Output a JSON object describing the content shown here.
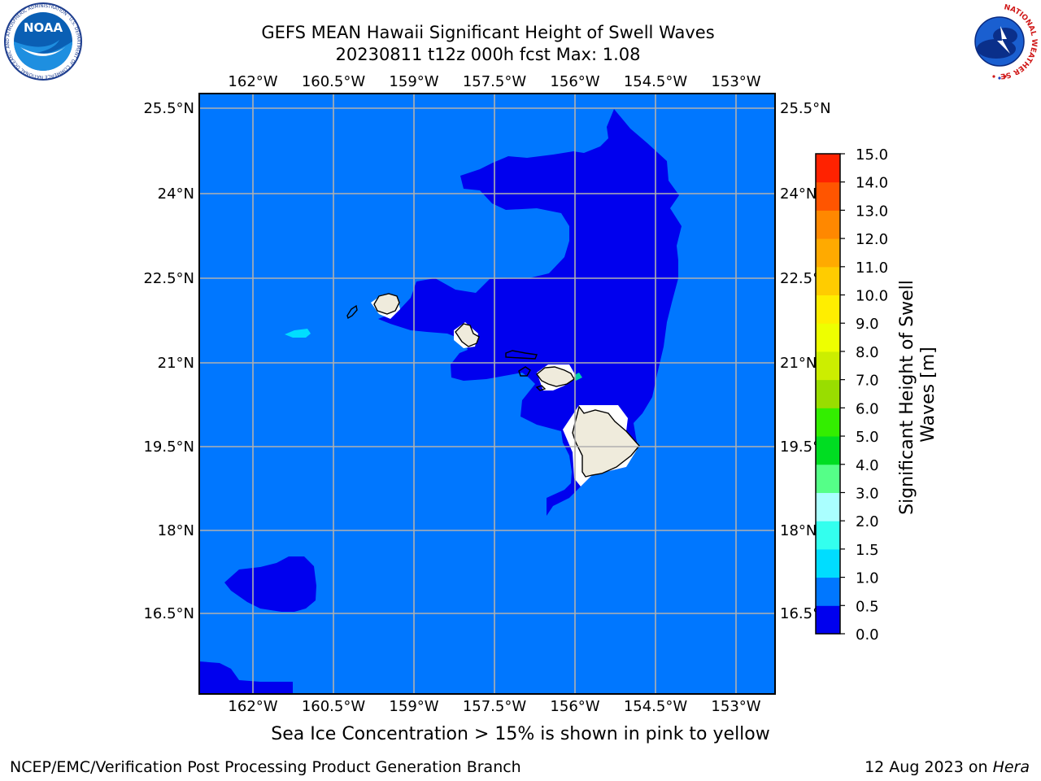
{
  "title": {
    "line1": "GEFS MEAN Hawaii Significant Height of Swell Waves",
    "line2": "20230811 t12z 000h fcst   Max: 1.08"
  },
  "caption": "Sea Ice Concentration > 15% is shown in pink to yellow",
  "footer": {
    "left": "NCEP/EMC/Verification Post Processing Product Generation Branch",
    "date": "12 Aug 2023 on ",
    "host": "Hera"
  },
  "logos": {
    "noaa": "NOAA",
    "noaa_ring": "NATIONAL OCEANIC AND ATMOSPHERIC ADMINISTRATION · U.S. DEPARTMENT OF COMMERCE",
    "nws_ring": "NATIONAL WEATHER SERVICE"
  },
  "map": {
    "lon_ticks": [
      "162°W",
      "160.5°W",
      "159°W",
      "157.5°W",
      "156°W",
      "154.5°W",
      "153°W"
    ],
    "lat_ticks": [
      "25.5°N",
      "24°N",
      "22.5°N",
      "21°N",
      "19.5°N",
      "18°N",
      "16.5°N"
    ],
    "lon_range": [
      -163.0,
      -152.2
    ],
    "lat_range": [
      14.8,
      25.7
    ],
    "ocean_color": "#0077ff",
    "low_color": "#0000ee",
    "land_color": "#efebdc"
  },
  "colorbar": {
    "label": "Significant Height of Swell Waves [m]",
    "label_line1": "Significant Height of Swell",
    "label_line2": "Waves [m]",
    "levels": [
      "0.0",
      "0.5",
      "1.0",
      "1.5",
      "2.0",
      "3.0",
      "4.0",
      "5.0",
      "6.0",
      "7.0",
      "8.0",
      "9.0",
      "10.0",
      "11.0",
      "12.0",
      "13.0",
      "14.0",
      "15.0"
    ],
    "colors": [
      "#0000ee",
      "#0077ff",
      "#00ddff",
      "#33ffee",
      "#aaffff",
      "#55ff88",
      "#00dd22",
      "#33ee00",
      "#99dd00",
      "#ccee00",
      "#eeff00",
      "#ffee00",
      "#ffcc00",
      "#ffaa00",
      "#ff8800",
      "#ff5500",
      "#ff2200"
    ]
  }
}
